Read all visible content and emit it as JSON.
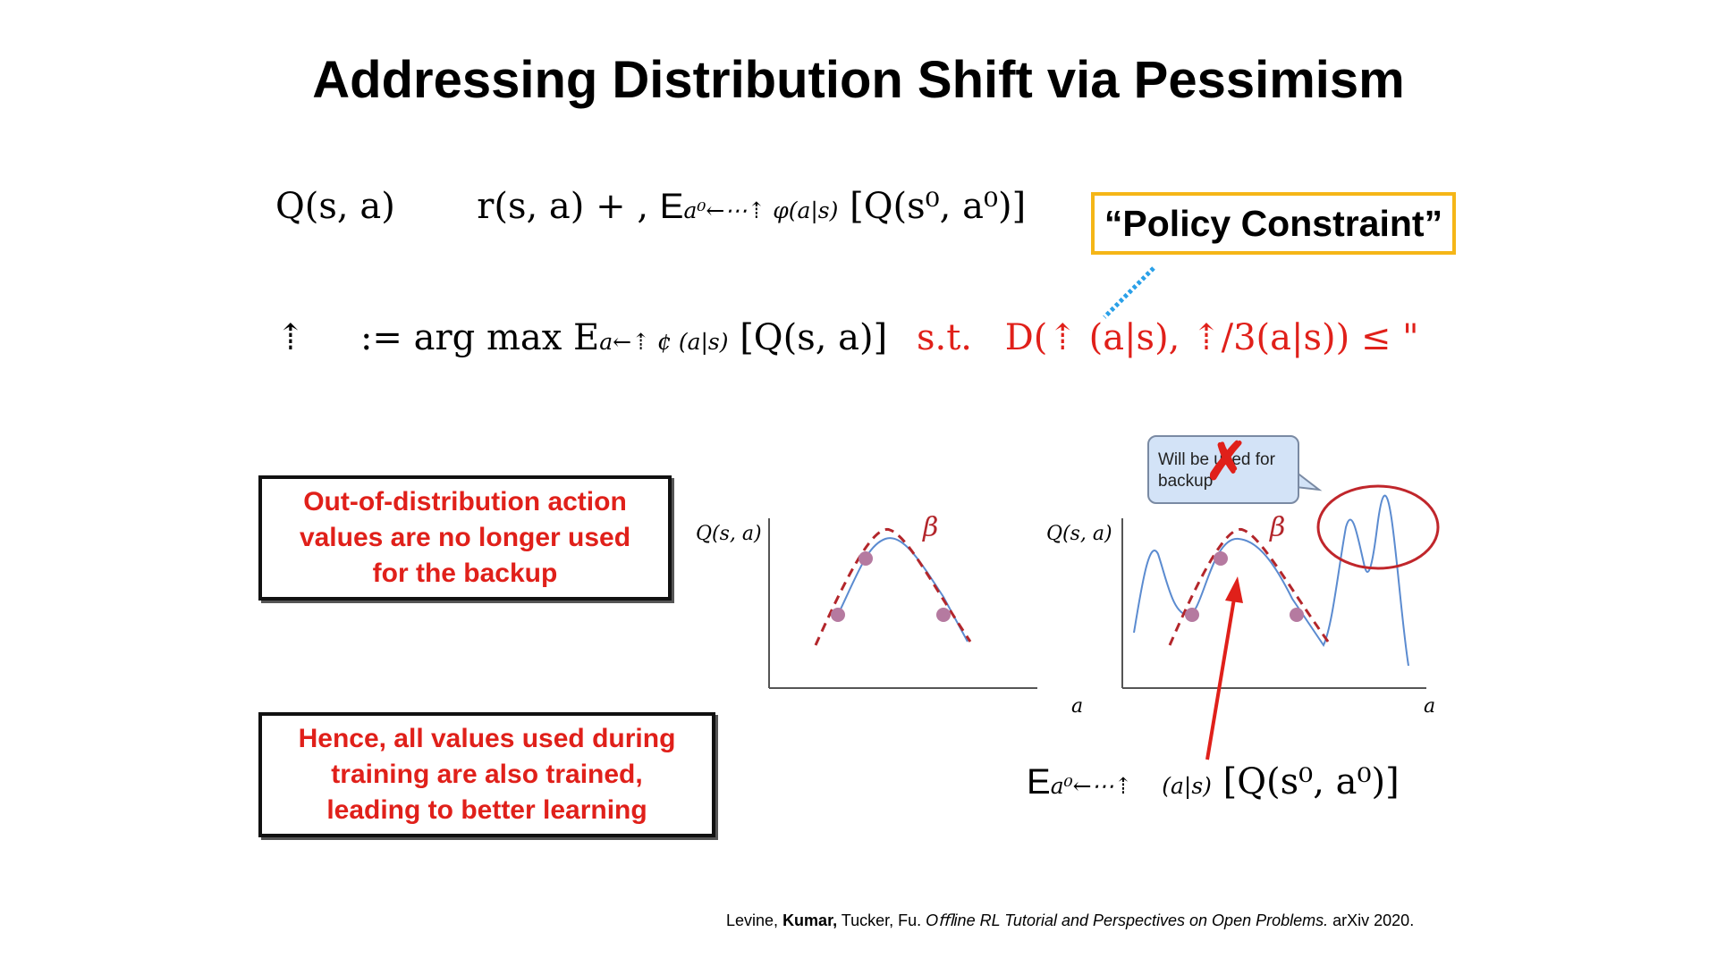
{
  "title": "Addressing Distribution Shift via Pessimism",
  "equation1": {
    "lhs": "Q(s, a)",
    "rhs": "r(s, a) + ,",
    "expect": "E",
    "subscript": "a⁰←⋯⇡ φ(a|s)",
    "bracket": "[Q(s⁰, a⁰)]"
  },
  "callout": "“Policy Constraint”",
  "equation2": {
    "pi": "⇡",
    "assign": ":=",
    "argmax": "arg max E",
    "subscript": "a←⇡ ¢ (a|s)",
    "bracket": "[Q(s, a)]",
    "st": "s.t.",
    "constraint": "D(⇡  (a|s), ⇡/3(a|s)) ≤ \""
  },
  "box1": [
    "Out-of-distribution action",
    "values are no longer used",
    "for the backup"
  ],
  "box2": [
    "Hence, all values used during",
    "training are also trained,",
    "leading to better learning"
  ],
  "bubble": {
    "line1": "Will be used for",
    "line2": "backup"
  },
  "plots": {
    "ylabel": "Q(s, a)",
    "xlabel": "a",
    "beta": "β"
  },
  "equation3": {
    "expect": "E",
    "subscript": "a⁰←⋯⇡",
    "subscript2": "(a|s)",
    "bracket": "[Q(s⁰, a⁰)]"
  },
  "citation": {
    "authors_pre": "Levine,",
    "authors_bold": "Kumar,",
    "authors_post": "Tucker, Fu.",
    "title": "Oﬄine RL Tutorial and Perspectives on Open Problems.",
    "venue": "arXiv 2020."
  },
  "colors": {
    "accent_red": "#e0201a",
    "callout_border": "#f5b617",
    "curve_blue": "#5b8bd0",
    "beta_red": "#b3262b",
    "point_purple": "#b57aa0"
  }
}
